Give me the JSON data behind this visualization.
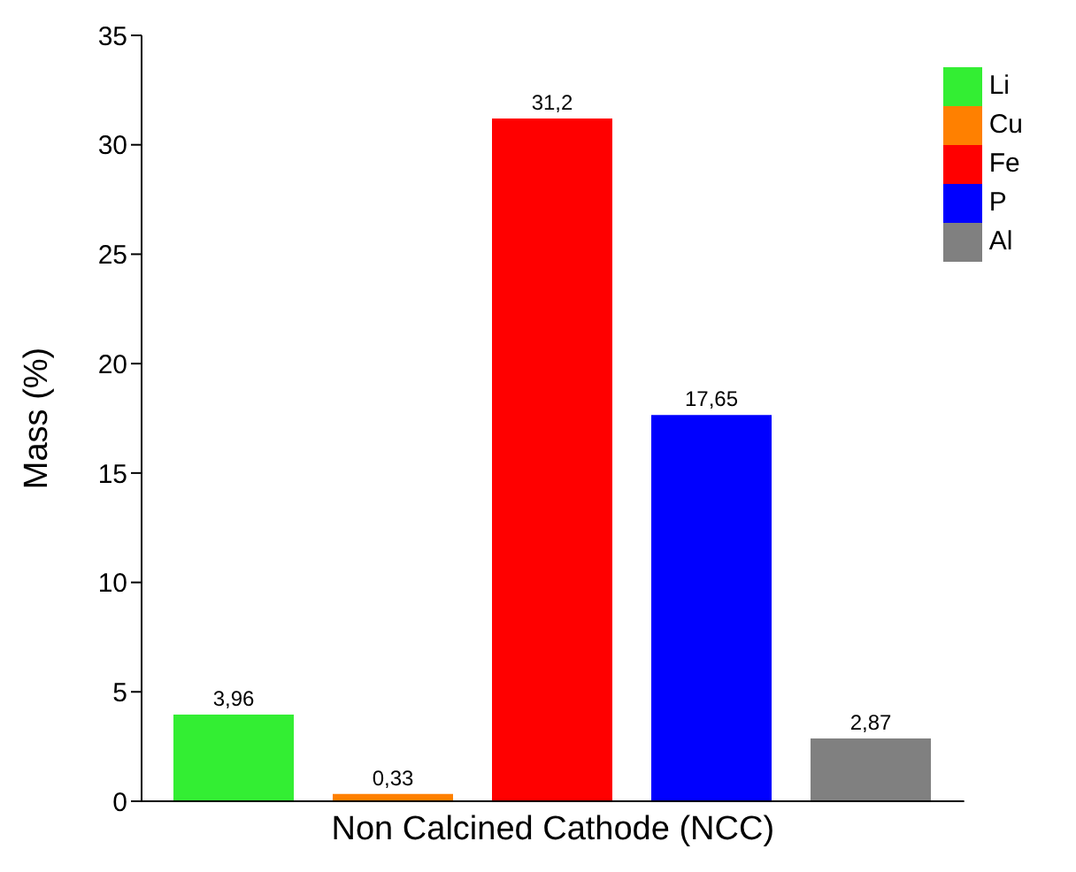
{
  "chart_data": {
    "type": "bar",
    "categories": [
      "Non Calcined Cathode (NCC)"
    ],
    "ylabel": "Mass (%)",
    "ylim": [
      0,
      35
    ],
    "yticks": [
      0,
      5,
      10,
      15,
      20,
      25,
      30,
      35
    ],
    "grid": false,
    "legend": "top right",
    "series": [
      {
        "name": "Li",
        "color": "#33ee33",
        "values": [
          3.96
        ],
        "value_labels": [
          "3,96"
        ]
      },
      {
        "name": "Cu",
        "color": "#ff8000",
        "values": [
          0.33
        ],
        "value_labels": [
          "0,33"
        ]
      },
      {
        "name": "Fe",
        "color": "#ff0000",
        "values": [
          31.2
        ],
        "value_labels": [
          "31,2"
        ]
      },
      {
        "name": "P",
        "color": "#0000ff",
        "values": [
          17.65
        ],
        "value_labels": [
          "17,65"
        ]
      },
      {
        "name": "Al",
        "color": "#808080",
        "values": [
          2.87
        ],
        "value_labels": [
          "2,87"
        ]
      }
    ]
  }
}
